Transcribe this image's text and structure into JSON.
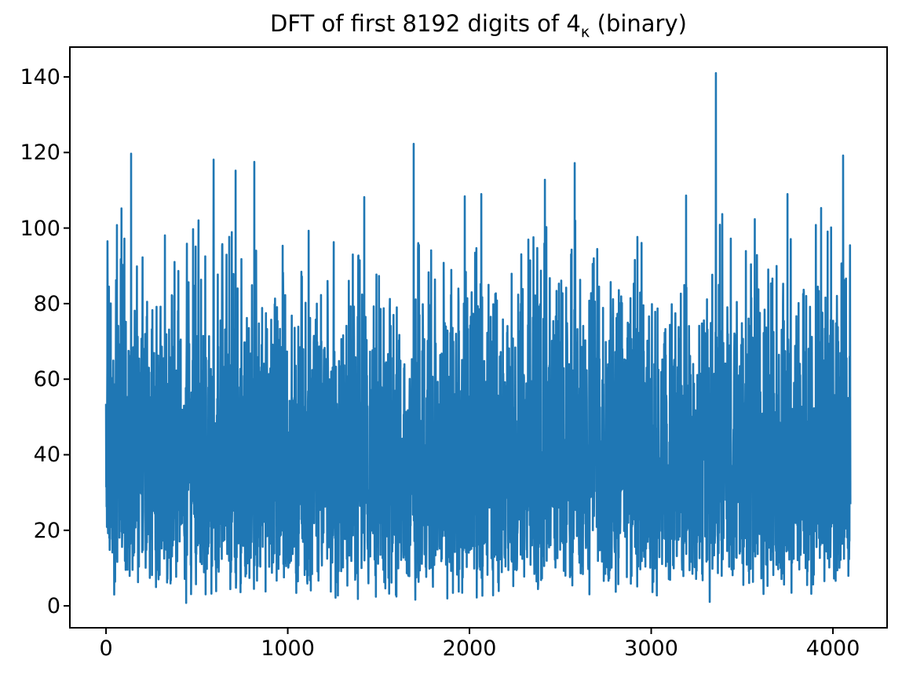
{
  "figure": {
    "title": {
      "text": "DFT of first 8192 digits of 4κ (binary)",
      "prefix": "DFT of first 8192 digits of 4",
      "subscript": "κ",
      "suffix": " (binary)"
    },
    "background_color": "#ffffff",
    "spine_color": "#000000",
    "text_color": "#000000"
  },
  "chart_data": {
    "type": "line",
    "title": "DFT of first 8192 digits of 4κ (binary)",
    "xlabel": "",
    "ylabel": "",
    "legend": null,
    "grid": false,
    "line_color": "#1f77b4",
    "x_data_range": [
      0,
      4096
    ],
    "xlim": [
      -199,
      4298
    ],
    "ylim": [
      -5.8,
      147.9
    ],
    "xticks": [
      0,
      1000,
      2000,
      3000,
      4000
    ],
    "yticks": [
      0,
      20,
      40,
      60,
      80,
      100,
      120,
      140
    ],
    "n_points": 4097,
    "series_description": "Single noise-like series: DFT magnitudes of 8192 binary digits. Rayleigh-distributed values (sigma about 32), dense solid band roughly 18-60, frequent excursions 60-100, dips toward 0-10, sparse spikes above 105, global maximum about 141 near x=3356.",
    "generator": {
      "distribution": "rayleigh",
      "sigma": 32,
      "seed": 20,
      "clip_max": 103,
      "reflect_factor": 0.8,
      "min_value": 0.4,
      "n": 4097
    },
    "notable_peaks": [
      [
        8,
        96.5
      ],
      [
        60,
        100.8
      ],
      [
        85,
        105.2
      ],
      [
        138,
        119.7
      ],
      [
        592,
        118.1
      ],
      [
        713,
        115.2
      ],
      [
        816,
        117.5
      ],
      [
        1421,
        108.2
      ],
      [
        1693,
        122.3
      ],
      [
        1974,
        108.4
      ],
      [
        2065,
        109.0
      ],
      [
        2415,
        112.8
      ],
      [
        2579,
        117.2
      ],
      [
        3192,
        108.6
      ],
      [
        3356,
        141.0
      ],
      [
        3391,
        103.7
      ],
      [
        3750,
        109.0
      ],
      [
        3935,
        105.3
      ],
      [
        4056,
        119.2
      ]
    ]
  }
}
